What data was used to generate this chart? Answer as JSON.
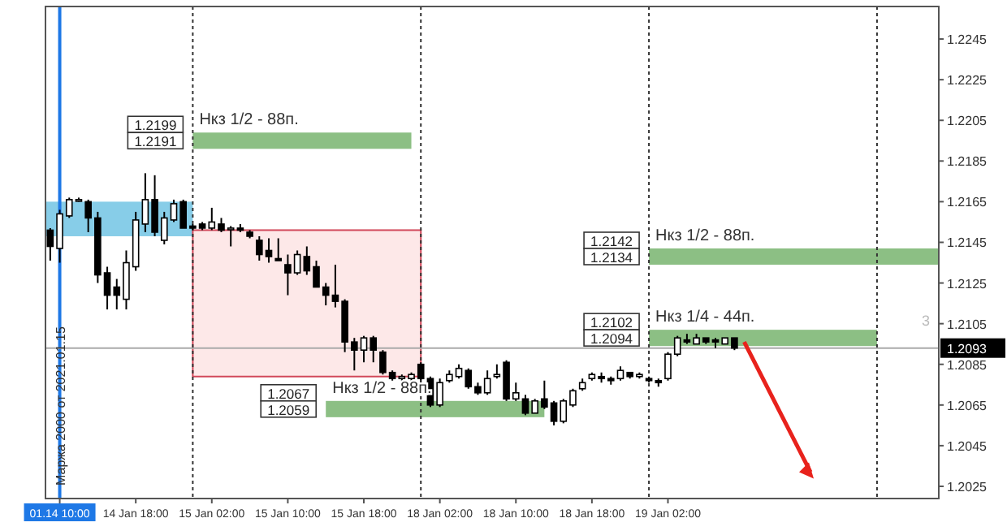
{
  "chart_data": {
    "type": "candlestick",
    "categories": [
      null,
      "01.14 10:00",
      null,
      null,
      null,
      null,
      null,
      null,
      null,
      "14 Jan 18:00",
      null,
      null,
      null,
      null,
      null,
      null,
      null,
      "15 Jan 02:00",
      null,
      null,
      null,
      null,
      null,
      null,
      null,
      "15 Jan 10:00",
      null,
      null,
      null,
      null,
      null,
      null,
      null,
      "15 Jan 18:00",
      null,
      null,
      null,
      null,
      null,
      null,
      null,
      "18 Jan 02:00",
      null,
      null,
      null,
      null,
      null,
      null,
      null,
      "18 Jan 10:00",
      null,
      null,
      null,
      null,
      null,
      null,
      null,
      "18 Jan 18:00",
      null,
      null,
      null,
      null,
      null,
      null,
      null,
      "19 Jan 02:00",
      null,
      null,
      null,
      null,
      null,
      null,
      null,
      null,
      null,
      null,
      null,
      null,
      null,
      null,
      null,
      null,
      null,
      null,
      null,
      null,
      null,
      null,
      null,
      null,
      null,
      null,
      null,
      null
    ],
    "ohlc": [
      [
        1.2151,
        1.2152,
        1.2136,
        1.2143
      ],
      [
        1.2142,
        1.2161,
        1.2135,
        1.2159
      ],
      [
        1.2158,
        1.2167,
        1.2157,
        1.2166
      ],
      [
        1.2166,
        1.2167,
        1.2165,
        1.2166
      ],
      [
        1.2165,
        1.2166,
        1.215,
        1.2157
      ],
      [
        1.2157,
        1.216,
        1.2125,
        1.2129
      ],
      [
        1.213,
        1.2133,
        1.2112,
        1.2119
      ],
      [
        1.2123,
        1.2127,
        1.2112,
        1.2119
      ],
      [
        1.2117,
        1.2141,
        1.2112,
        1.2135
      ],
      [
        1.2133,
        1.216,
        1.2131,
        1.2156
      ],
      [
        1.2154,
        1.2179,
        1.215,
        1.2166
      ],
      [
        1.2166,
        1.2178,
        1.2148,
        1.215
      ],
      [
        1.2146,
        1.216,
        1.2144,
        1.2157
      ],
      [
        1.2156,
        1.2166,
        1.2155,
        1.2164
      ],
      [
        1.2165,
        1.2166,
        1.2152,
        1.2152
      ],
      [
        1.2153,
        1.2154,
        1.2151,
        1.2152
      ],
      [
        1.2154,
        1.2155,
        1.2151,
        1.2152
      ],
      [
        1.2152,
        1.2162,
        1.2151,
        1.2155
      ],
      [
        1.2154,
        1.2157,
        1.215,
        1.2151
      ],
      [
        1.2152,
        1.2153,
        1.2143,
        1.2152
      ],
      [
        1.2152,
        1.2154,
        1.215,
        1.2151
      ],
      [
        1.215,
        1.2151,
        1.2147,
        1.2148
      ],
      [
        1.2146,
        1.2148,
        1.2136,
        1.2139
      ],
      [
        1.2141,
        1.2147,
        1.2135,
        1.2138
      ],
      [
        1.2137,
        1.2147,
        1.2136,
        1.2136
      ],
      [
        1.2134,
        1.2139,
        1.2119,
        1.213
      ],
      [
        1.213,
        1.2141,
        1.2129,
        1.2139
      ],
      [
        1.2138,
        1.2143,
        1.2129,
        1.2131
      ],
      [
        1.2133,
        1.2136,
        1.2123,
        1.2123
      ],
      [
        1.2123,
        1.2125,
        1.2114,
        1.2119
      ],
      [
        1.2119,
        1.2134,
        1.2113,
        1.2116
      ],
      [
        1.2116,
        1.2117,
        1.2091,
        1.2096
      ],
      [
        1.2096,
        1.2098,
        1.2082,
        1.2092
      ],
      [
        1.2092,
        1.2099,
        1.2086,
        1.2098
      ],
      [
        1.2098,
        1.2099,
        1.2086,
        1.2092
      ],
      [
        1.2091,
        1.2092,
        1.208,
        1.2081
      ],
      [
        1.2081,
        1.2082,
        1.2077,
        1.2078
      ],
      [
        1.2078,
        1.208,
        1.2077,
        1.2079
      ],
      [
        1.2078,
        1.2081,
        1.2077,
        1.208
      ],
      [
        1.2085,
        1.2086,
        1.2071,
        1.2078
      ],
      [
        1.2078,
        1.2079,
        1.2064,
        1.2065
      ],
      [
        1.2065,
        1.2078,
        1.2064,
        1.2076
      ],
      [
        1.2077,
        1.2082,
        1.2076,
        1.208
      ],
      [
        1.2079,
        1.2085,
        1.2078,
        1.2083
      ],
      [
        1.2082,
        1.2083,
        1.2073,
        1.2074
      ],
      [
        1.2074,
        1.2076,
        1.207,
        1.2071
      ],
      [
        1.2071,
        1.2082,
        1.207,
        1.2078
      ],
      [
        1.2079,
        1.2085,
        1.2078,
        1.208
      ],
      [
        1.2086,
        1.2087,
        1.2067,
        1.2068
      ],
      [
        1.2068,
        1.2076,
        1.2067,
        1.2071
      ],
      [
        1.2068,
        1.207,
        1.206,
        1.2061
      ],
      [
        1.2061,
        1.2068,
        1.2061,
        1.2067
      ],
      [
        1.2068,
        1.2077,
        1.2063,
        1.2064
      ],
      [
        1.2066,
        1.2067,
        1.2055,
        1.2057
      ],
      [
        1.2057,
        1.2068,
        1.2056,
        1.2067
      ],
      [
        1.2065,
        1.2073,
        1.2064,
        1.2072
      ],
      [
        1.2073,
        1.2078,
        1.2072,
        1.2076
      ],
      [
        1.2078,
        1.2081,
        1.2077,
        1.208
      ],
      [
        1.2079,
        1.2081,
        1.2076,
        1.2078
      ],
      [
        1.2078,
        1.2079,
        1.2075,
        1.2077
      ],
      [
        1.2078,
        1.2084,
        1.2077,
        1.2082
      ],
      [
        1.2081,
        1.2081,
        1.2078,
        1.2079
      ],
      [
        1.2079,
        1.2081,
        1.2078,
        1.208
      ],
      [
        1.2078,
        1.2079,
        1.2076,
        1.2077
      ],
      [
        1.2077,
        1.2078,
        1.2074,
        1.2076
      ],
      [
        1.2078,
        1.2091,
        1.2077,
        1.209
      ],
      [
        1.209,
        1.2099,
        1.2089,
        1.2098
      ],
      [
        1.2097,
        1.21,
        1.2095,
        1.2096
      ],
      [
        1.2095,
        1.21,
        1.2095,
        1.2098
      ],
      [
        1.2098,
        1.2098,
        1.2095,
        1.2096
      ],
      [
        1.2097,
        1.2098,
        1.2093,
        1.2096
      ],
      [
        1.2095,
        1.2098,
        1.2095,
        1.2098
      ],
      [
        1.2098,
        1.2098,
        1.2092,
        1.2093
      ],
      null,
      null,
      null,
      null,
      null,
      null,
      null,
      null,
      null,
      null,
      null,
      null,
      null,
      null,
      null,
      null,
      null,
      null,
      null,
      null,
      null
    ],
    "ylim": [
      1.2019,
      1.2261
    ],
    "grid": "x",
    "yticks": [
      1.2025,
      1.2045,
      1.2065,
      1.2085,
      1.2105,
      1.2125,
      1.2145,
      1.2165,
      1.2185,
      1.2205,
      1.2225,
      1.2245
    ],
    "ref_lines": [
      {
        "axis": "x",
        "value": "01.14 10:00",
        "color": "#1e78e6",
        "line_style": "solid"
      },
      {
        "axis": "y",
        "value": 1.2093,
        "label": "1.2093",
        "color": "#aaaaaa",
        "line_style": "solid"
      }
    ],
    "bands": [
      {
        "axis": "y",
        "from": 1.2148,
        "to": 1.2165,
        "color": "#87cde8"
      },
      {
        "axis": "y",
        "from": 1.2079,
        "to": 1.2151,
        "color": "#fde8e8"
      },
      {
        "axis": "y",
        "from": 1.2191,
        "to": 1.2199,
        "label": "Нкз 1/2 - 88п.",
        "color": "#8cbf84"
      },
      {
        "axis": "y",
        "from": 1.2059,
        "to": 1.2067,
        "label": "Нкз 1/2 - 88п.",
        "color": "#8cbf84"
      },
      {
        "axis": "y",
        "from": 1.2134,
        "to": 1.2142,
        "label": "Нкз 1/2 - 88п.",
        "color": "#8cbf84"
      },
      {
        "axis": "y",
        "from": 1.2094,
        "to": 1.2102,
        "label": "Нкз 1/4 - 44п.",
        "color": "#8cbf84"
      }
    ],
    "annotations": [
      "Маржа 2000 от 2021.01.15",
      "3",
      "1.2199",
      "1.2191",
      "1.2067",
      "1.2059",
      "1.2142",
      "1.2134",
      "1.2102",
      "1.2094"
    ]
  }
}
